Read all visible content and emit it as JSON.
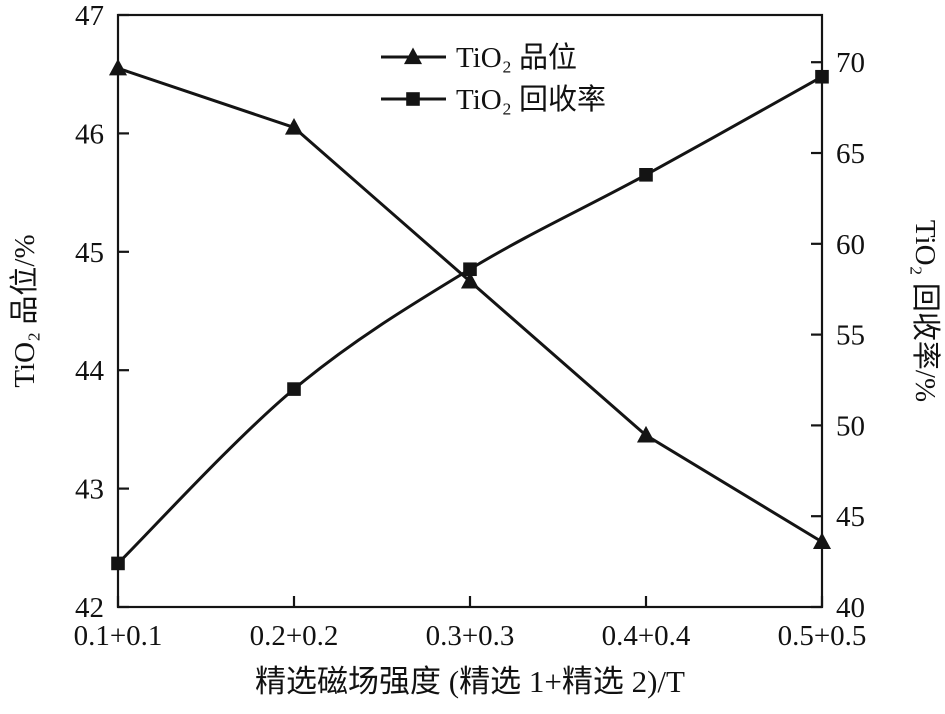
{
  "chart_data": {
    "type": "line",
    "title": "",
    "categories": [
      "0.1+0.1",
      "0.2+0.2",
      "0.3+0.3",
      "0.4+0.4",
      "0.5+0.5"
    ],
    "xlabel": "精选磁场强度 (精选 1+精选 2)/T",
    "left_axis": {
      "label": "TiO₂ 品位/%",
      "min": 42,
      "max": 47,
      "ticks": [
        42,
        43,
        44,
        45,
        46,
        47
      ]
    },
    "right_axis": {
      "label": "TiO₂ 回收率/%",
      "min": 40,
      "max": 72.6,
      "ticks": [
        40,
        45,
        50,
        55,
        60,
        65,
        70
      ]
    },
    "series": [
      {
        "name": "TiO₂ 品位",
        "axis": "left",
        "marker": "triangle",
        "smooth": false,
        "values": [
          46.55,
          46.05,
          44.75,
          43.45,
          42.55
        ]
      },
      {
        "name": "TiO₂ 回收率",
        "axis": "right",
        "marker": "square",
        "smooth": true,
        "values": [
          42.4,
          52.0,
          58.6,
          63.8,
          69.2
        ]
      }
    ],
    "legend_position": "top-center",
    "grid": false,
    "colors": {
      "line": "#141414",
      "text": "#111111",
      "background": "#ffffff"
    }
  }
}
